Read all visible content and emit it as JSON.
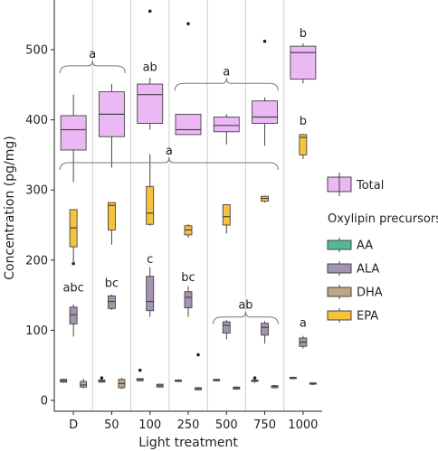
{
  "chart_data": {
    "type": "box",
    "xlabel": "Light treatment",
    "ylabel": "Concentration (pg/mg)",
    "categories": [
      "D",
      "50",
      "100",
      "250",
      "500",
      "750",
      "1000"
    ],
    "ylim": [
      -10,
      575
    ],
    "yticks": [
      0,
      100,
      200,
      300,
      400,
      500
    ],
    "grid": "vertical lines between treatments",
    "legend": {
      "placement": "right",
      "total_label": "Total",
      "precursors_title": "Oxylipin precursors",
      "entries": [
        "AA",
        "ALA",
        "DHA",
        "EPA"
      ]
    },
    "colors": {
      "Total": "#ebb8f5",
      "AA": "#52b89a",
      "ALA": "#a394b1",
      "DHA": "#c0a588",
      "EPA": "#f5c33d",
      "edge": "#444444"
    },
    "series": [
      {
        "name": "Total",
        "boxes": [
          {
            "q1": 357,
            "median": 386,
            "q3": 406,
            "whisker_low": 311,
            "whisker_high": 436,
            "outliers": []
          },
          {
            "q1": 376,
            "median": 408,
            "q3": 440,
            "whisker_low": 332,
            "whisker_high": 451,
            "outliers": []
          },
          {
            "q1": 395,
            "median": 436,
            "q3": 451,
            "whisker_low": 386,
            "whisker_high": 460,
            "outliers": [
              555
            ]
          },
          {
            "q1": 379,
            "median": 386,
            "q3": 408,
            "whisker_low": 379,
            "whisker_high": 408,
            "outliers": [
              537
            ]
          },
          {
            "q1": 383,
            "median": 392,
            "q3": 404,
            "whisker_low": 365,
            "whisker_high": 408,
            "outliers": []
          },
          {
            "q1": 395,
            "median": 404,
            "q3": 427,
            "whisker_low": 363,
            "whisker_high": 432,
            "outliers": [
              512
            ]
          },
          {
            "q1": 458,
            "median": 496,
            "q3": 505,
            "whisker_low": 452,
            "whisker_high": 509,
            "outliers": []
          }
        ]
      },
      {
        "name": "AA",
        "boxes": [
          {
            "q1": 26,
            "median": 28,
            "q3": 30,
            "whisker_low": 25,
            "whisker_high": 31,
            "outliers": []
          },
          {
            "q1": 26,
            "median": 28,
            "q3": 29,
            "whisker_low": 25,
            "whisker_high": 30,
            "outliers": [
              32
            ]
          },
          {
            "q1": 28,
            "median": 30,
            "q3": 31,
            "whisker_low": 27,
            "whisker_high": 31,
            "outliers": [
              43
            ]
          },
          {
            "q1": 27,
            "median": 28,
            "q3": 29,
            "whisker_low": 26,
            "whisker_high": 30,
            "outliers": []
          },
          {
            "q1": 28,
            "median": 29,
            "q3": 30,
            "whisker_low": 27,
            "whisker_high": 30,
            "outliers": []
          },
          {
            "q1": 27,
            "median": 28,
            "q3": 29,
            "whisker_low": 25,
            "whisker_high": 30,
            "outliers": [
              32
            ]
          },
          {
            "q1": 31,
            "median": 32,
            "q3": 33,
            "whisker_low": 30,
            "whisker_high": 33,
            "outliers": []
          }
        ]
      },
      {
        "name": "ALA",
        "boxes": [
          {
            "q1": 109,
            "median": 122,
            "q3": 133,
            "whisker_low": 91,
            "whisker_high": 137,
            "outliers": [
              195
            ]
          },
          {
            "q1": 131,
            "median": 141,
            "q3": 149,
            "whisker_low": 129,
            "whisker_high": 151,
            "outliers": []
          },
          {
            "q1": 128,
            "median": 141,
            "q3": 177,
            "whisker_low": 119,
            "whisker_high": 190,
            "outliers": []
          },
          {
            "q1": 132,
            "median": 147,
            "q3": 155,
            "whisker_low": 119,
            "whisker_high": 163,
            "outliers": []
          },
          {
            "q1": 96,
            "median": 107,
            "q3": 112,
            "whisker_low": 87,
            "whisker_high": 115,
            "outliers": []
          },
          {
            "q1": 93,
            "median": 104,
            "q3": 110,
            "whisker_low": 81,
            "whisker_high": 113,
            "outliers": []
          },
          {
            "q1": 77,
            "median": 83,
            "q3": 89,
            "whisker_low": 74,
            "whisker_high": 92,
            "outliers": []
          }
        ]
      },
      {
        "name": "DHA",
        "boxes": [
          {
            "q1": 19,
            "median": 22,
            "q3": 27,
            "whisker_low": 17,
            "whisker_high": 31,
            "outliers": []
          },
          {
            "q1": 18,
            "median": 24,
            "q3": 30,
            "whisker_low": 16,
            "whisker_high": 32,
            "outliers": []
          },
          {
            "q1": 19,
            "median": 21,
            "q3": 23,
            "whisker_low": 18,
            "whisker_high": 24,
            "outliers": []
          },
          {
            "q1": 15,
            "median": 17,
            "q3": 18,
            "whisker_low": 14,
            "whisker_high": 19,
            "outliers": [
              65
            ]
          },
          {
            "q1": 16,
            "median": 18,
            "q3": 19,
            "whisker_low": 15,
            "whisker_high": 20,
            "outliers": []
          },
          {
            "q1": 18,
            "median": 20,
            "q3": 21,
            "whisker_low": 17,
            "whisker_high": 22,
            "outliers": []
          },
          {
            "q1": 23,
            "median": 24,
            "q3": 25,
            "whisker_low": 22,
            "whisker_high": 25,
            "outliers": []
          }
        ]
      },
      {
        "name": "EPA",
        "boxes": [
          {
            "q1": 219,
            "median": 246,
            "q3": 272,
            "whisker_low": 194,
            "whisker_high": 272,
            "outliers": []
          },
          {
            "q1": 243,
            "median": 278,
            "q3": 282,
            "whisker_low": 222,
            "whisker_high": 282,
            "outliers": []
          },
          {
            "q1": 251,
            "median": 267,
            "q3": 305,
            "whisker_low": 249,
            "whisker_high": 351,
            "outliers": []
          },
          {
            "q1": 236,
            "median": 243,
            "q3": 249,
            "whisker_low": 232,
            "whisker_high": 251,
            "outliers": []
          },
          {
            "q1": 250,
            "median": 262,
            "q3": 279,
            "whisker_low": 238,
            "whisker_high": 280,
            "outliers": []
          },
          {
            "q1": 284,
            "median": 288,
            "q3": 291,
            "whisker_low": 282,
            "whisker_high": 292,
            "outliers": []
          },
          {
            "q1": 350,
            "median": 375,
            "q3": 379,
            "whisker_low": 344,
            "whisker_high": 380,
            "outliers": []
          }
        ]
      }
    ],
    "annotations": [
      {
        "text": "a",
        "span": [
          0,
          1
        ],
        "y": 495
      },
      {
        "text": "ab",
        "span": [
          2,
          2
        ],
        "y": 470
      },
      {
        "text": "a",
        "span": [
          3,
          5
        ],
        "y": 470
      },
      {
        "text": "b",
        "span": [
          6,
          6
        ],
        "y": 518
      },
      {
        "text": "a",
        "span": [
          0,
          5
        ],
        "y": 357
      },
      {
        "text": "b",
        "span": [
          6,
          6
        ],
        "y": 393
      },
      {
        "text": "abc",
        "span": [
          0,
          0
        ],
        "y": 155
      },
      {
        "text": "bc",
        "span": [
          1,
          1
        ],
        "y": 162
      },
      {
        "text": "c",
        "span": [
          2,
          2
        ],
        "y": 196
      },
      {
        "text": "bc",
        "span": [
          3,
          3
        ],
        "y": 170
      },
      {
        "text": "ab",
        "span": [
          4,
          5
        ],
        "y": 137
      },
      {
        "text": "a",
        "span": [
          6,
          6
        ],
        "y": 105
      }
    ]
  }
}
